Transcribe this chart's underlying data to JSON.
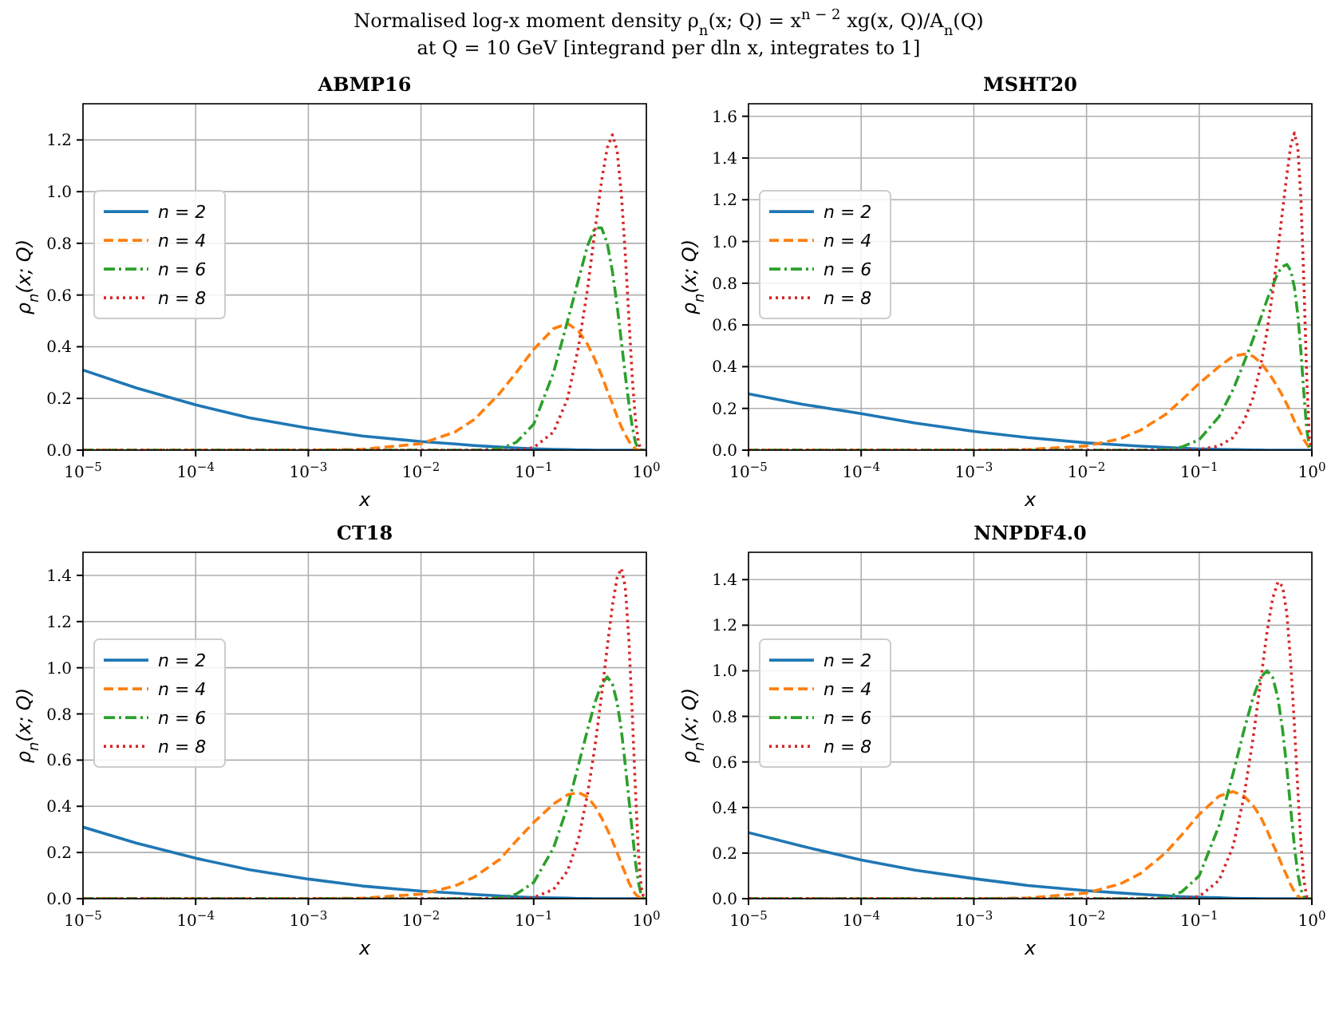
{
  "chart_data": [
    {
      "type": "line",
      "title": "ABMP16",
      "xlabel": "x",
      "ylabel": "ρ$_{n}$(x; Q)",
      "log": "x",
      "grid": true,
      "legend": "center left",
      "xlim": [
        1e-05,
        1
      ],
      "ylim": [
        0,
        1.34
      ],
      "annotations": [
        "Normalised log-x moment density  ρ$_{n}$(x; Q) = x$^{n − 2}$ xg(x, Q)/A$_{n}$(Q)",
        "at Q = 10 GeV   [integrand per dln x, integrates to 1]"
      ],
      "xticks": [
        {
          "value": 1e-05,
          "label": "10$^{−5}$"
        },
        {
          "value": 0.0001,
          "label": "10$^{−4}$"
        },
        {
          "value": 0.001,
          "label": "10$^{−3}$"
        },
        {
          "value": 0.01,
          "label": "10$^{−2}$"
        },
        {
          "value": 0.1,
          "label": "10$^{−1}$"
        },
        {
          "value": 1,
          "label": "10$^{0}$"
        }
      ],
      "yticks": [
        {
          "value": 0,
          "label": "0.0"
        },
        {
          "value": 0.2,
          "label": "0.2"
        },
        {
          "value": 0.4,
          "label": "0.4"
        },
        {
          "value": 0.6,
          "label": "0.6"
        },
        {
          "value": 0.8,
          "label": "0.8"
        },
        {
          "value": 1,
          "label": "1.0"
        },
        {
          "value": 1.2,
          "label": "1.2"
        }
      ],
      "x": [
        1e-05,
        3e-05,
        0.0001,
        0.0003,
        0.001,
        0.003,
        0.01,
        0.02,
        0.03,
        0.05,
        0.07,
        0.1,
        0.15,
        0.2,
        0.25,
        0.3,
        0.35,
        0.4,
        0.45,
        0.5,
        0.55,
        0.6,
        0.65,
        0.7,
        0.75,
        0.8,
        0.85,
        0.9,
        0.95,
        1
      ],
      "series": [
        {
          "name": "n = 2",
          "color": "#1f77b4",
          "line_style": "solid",
          "values": [
            0.31,
            0.24,
            0.175,
            0.125,
            0.085,
            0.055,
            0.033,
            0.024,
            0.018,
            0.012,
            0.008,
            0.005,
            0.003,
            0.002,
            0.001,
            0.001,
            0,
            0,
            0,
            0,
            0,
            0,
            0,
            0,
            0,
            0,
            0,
            0,
            0,
            0
          ]
        },
        {
          "name": "n = 4",
          "color": "#ff7f0e",
          "line_style": "dashed",
          "values": [
            0,
            0,
            0,
            0,
            0,
            0.003,
            0.025,
            0.07,
            0.12,
            0.22,
            0.3,
            0.39,
            0.47,
            0.49,
            0.46,
            0.41,
            0.35,
            0.29,
            0.23,
            0.18,
            0.13,
            0.09,
            0.06,
            0.035,
            0.015,
            0.005,
            0,
            0,
            0,
            0
          ]
        },
        {
          "name": "n = 6",
          "color": "#2ca02c",
          "line_style": "dashdot",
          "values": [
            0,
            0,
            0,
            0,
            0,
            0,
            0,
            0,
            0,
            0.005,
            0.03,
            0.1,
            0.3,
            0.5,
            0.66,
            0.79,
            0.86,
            0.86,
            0.8,
            0.69,
            0.56,
            0.42,
            0.29,
            0.18,
            0.09,
            0.03,
            0.005,
            0,
            0,
            0
          ]
        },
        {
          "name": "n = 8",
          "color": "#d62728",
          "line_style": "dotted",
          "values": [
            0,
            0,
            0,
            0,
            0,
            0,
            0,
            0,
            0,
            0,
            0,
            0.01,
            0.07,
            0.2,
            0.4,
            0.62,
            0.85,
            1.04,
            1.17,
            1.22,
            1.16,
            0.99,
            0.76,
            0.51,
            0.28,
            0.12,
            0.03,
            0,
            0,
            0
          ]
        }
      ]
    },
    {
      "type": "line",
      "title": "MSHT20",
      "xlabel": "x",
      "ylabel": "ρ$_{n}$(x; Q)",
      "log": "x",
      "grid": true,
      "legend": "center left",
      "xlim": [
        1e-05,
        1
      ],
      "ylim": [
        0,
        1.66
      ],
      "xticks": [
        {
          "value": 1e-05,
          "label": "10$^{−5}$"
        },
        {
          "value": 0.0001,
          "label": "10$^{−4}$"
        },
        {
          "value": 0.001,
          "label": "10$^{−3}$"
        },
        {
          "value": 0.01,
          "label": "10$^{−2}$"
        },
        {
          "value": 0.1,
          "label": "10$^{−1}$"
        },
        {
          "value": 1,
          "label": "10$^{0}$"
        }
      ],
      "yticks": [
        {
          "value": 0,
          "label": "0.0"
        },
        {
          "value": 0.2,
          "label": "0.2"
        },
        {
          "value": 0.4,
          "label": "0.4"
        },
        {
          "value": 0.6,
          "label": "0.6"
        },
        {
          "value": 0.8,
          "label": "0.8"
        },
        {
          "value": 1,
          "label": "1.0"
        },
        {
          "value": 1.2,
          "label": "1.2"
        },
        {
          "value": 1.4,
          "label": "1.4"
        },
        {
          "value": 1.6,
          "label": "1.6"
        }
      ],
      "x": [
        1e-05,
        3e-05,
        0.0001,
        0.0003,
        0.001,
        0.003,
        0.01,
        0.02,
        0.03,
        0.05,
        0.07,
        0.1,
        0.15,
        0.2,
        0.25,
        0.3,
        0.35,
        0.4,
        0.45,
        0.5,
        0.55,
        0.6,
        0.65,
        0.7,
        0.75,
        0.8,
        0.85,
        0.9,
        0.95,
        1
      ],
      "series": [
        {
          "name": "n = 2",
          "color": "#1f77b4",
          "line_style": "solid",
          "values": [
            0.27,
            0.22,
            0.175,
            0.13,
            0.09,
            0.06,
            0.035,
            0.025,
            0.019,
            0.013,
            0.009,
            0.006,
            0.004,
            0.003,
            0.002,
            0.001,
            0.001,
            0,
            0,
            0,
            0,
            0,
            0,
            0,
            0,
            0,
            0,
            0,
            0,
            0
          ]
        },
        {
          "name": "n = 4",
          "color": "#ff7f0e",
          "line_style": "dashed",
          "values": [
            0,
            0,
            0,
            0,
            0,
            0.003,
            0.02,
            0.055,
            0.095,
            0.17,
            0.24,
            0.32,
            0.4,
            0.45,
            0.46,
            0.45,
            0.42,
            0.38,
            0.34,
            0.3,
            0.26,
            0.22,
            0.18,
            0.14,
            0.11,
            0.08,
            0.05,
            0.03,
            0.012,
            0
          ]
        },
        {
          "name": "n = 6",
          "color": "#2ca02c",
          "line_style": "dashdot",
          "values": [
            0,
            0,
            0,
            0,
            0,
            0,
            0,
            0,
            0,
            0.003,
            0.015,
            0.05,
            0.16,
            0.29,
            0.42,
            0.53,
            0.63,
            0.72,
            0.79,
            0.85,
            0.88,
            0.89,
            0.86,
            0.78,
            0.65,
            0.47,
            0.27,
            0.1,
            0.02,
            0
          ]
        },
        {
          "name": "n = 8",
          "color": "#d62728",
          "line_style": "dotted",
          "values": [
            0,
            0,
            0,
            0,
            0,
            0,
            0,
            0,
            0,
            0,
            0,
            0.003,
            0.02,
            0.06,
            0.14,
            0.25,
            0.4,
            0.57,
            0.76,
            0.96,
            1.15,
            1.32,
            1.46,
            1.52,
            1.45,
            1.2,
            0.8,
            0.35,
            0.06,
            0
          ]
        }
      ]
    },
    {
      "type": "line",
      "title": "CT18",
      "xlabel": "x",
      "ylabel": "ρ$_{n}$(x; Q)",
      "log": "x",
      "grid": true,
      "legend": "center left",
      "xlim": [
        1e-05,
        1
      ],
      "ylim": [
        0,
        1.5
      ],
      "xticks": [
        {
          "value": 1e-05,
          "label": "10$^{−5}$"
        },
        {
          "value": 0.0001,
          "label": "10$^{−4}$"
        },
        {
          "value": 0.001,
          "label": "10$^{−3}$"
        },
        {
          "value": 0.01,
          "label": "10$^{−2}$"
        },
        {
          "value": 0.1,
          "label": "10$^{−1}$"
        },
        {
          "value": 1,
          "label": "10$^{0}$"
        }
      ],
      "yticks": [
        {
          "value": 0,
          "label": "0.0"
        },
        {
          "value": 0.2,
          "label": "0.2"
        },
        {
          "value": 0.4,
          "label": "0.4"
        },
        {
          "value": 0.6,
          "label": "0.6"
        },
        {
          "value": 0.8,
          "label": "0.8"
        },
        {
          "value": 1,
          "label": "1.0"
        },
        {
          "value": 1.2,
          "label": "1.2"
        },
        {
          "value": 1.4,
          "label": "1.4"
        }
      ],
      "x": [
        1e-05,
        3e-05,
        0.0001,
        0.0003,
        0.001,
        0.003,
        0.01,
        0.02,
        0.03,
        0.05,
        0.07,
        0.1,
        0.15,
        0.2,
        0.25,
        0.3,
        0.35,
        0.4,
        0.45,
        0.5,
        0.55,
        0.6,
        0.65,
        0.7,
        0.75,
        0.8,
        0.85,
        0.9,
        0.95,
        1
      ],
      "series": [
        {
          "name": "n = 2",
          "color": "#1f77b4",
          "line_style": "solid",
          "values": [
            0.31,
            0.24,
            0.175,
            0.125,
            0.085,
            0.055,
            0.033,
            0.024,
            0.018,
            0.012,
            0.008,
            0.005,
            0.003,
            0.002,
            0.001,
            0.001,
            0,
            0,
            0,
            0,
            0,
            0,
            0,
            0,
            0,
            0,
            0,
            0,
            0,
            0
          ]
        },
        {
          "name": "n = 4",
          "color": "#ff7f0e",
          "line_style": "dashed",
          "values": [
            0,
            0,
            0,
            0,
            0,
            0.002,
            0.02,
            0.055,
            0.095,
            0.17,
            0.25,
            0.33,
            0.41,
            0.45,
            0.46,
            0.44,
            0.4,
            0.35,
            0.3,
            0.25,
            0.2,
            0.15,
            0.11,
            0.07,
            0.04,
            0.02,
            0.008,
            0.002,
            0,
            0
          ]
        },
        {
          "name": "n = 6",
          "color": "#2ca02c",
          "line_style": "dashdot",
          "values": [
            0,
            0,
            0,
            0,
            0,
            0,
            0,
            0,
            0,
            0.003,
            0.02,
            0.07,
            0.22,
            0.4,
            0.58,
            0.73,
            0.85,
            0.93,
            0.96,
            0.93,
            0.85,
            0.73,
            0.58,
            0.43,
            0.29,
            0.16,
            0.07,
            0.015,
            0,
            0
          ]
        },
        {
          "name": "n = 8",
          "color": "#d62728",
          "line_style": "dotted",
          "values": [
            0,
            0,
            0,
            0,
            0,
            0,
            0,
            0,
            0,
            0,
            0,
            0.005,
            0.04,
            0.12,
            0.26,
            0.45,
            0.66,
            0.88,
            1.09,
            1.27,
            1.39,
            1.43,
            1.35,
            1.12,
            0.8,
            0.47,
            0.2,
            0.05,
            0,
            0
          ]
        }
      ]
    },
    {
      "type": "line",
      "title": "NNPDF4.0",
      "xlabel": "x",
      "ylabel": "ρ$_{n}$(x; Q)",
      "log": "x",
      "grid": true,
      "legend": "center left",
      "xlim": [
        1e-05,
        1
      ],
      "ylim": [
        0,
        1.52
      ],
      "xticks": [
        {
          "value": 1e-05,
          "label": "10$^{−5}$"
        },
        {
          "value": 0.0001,
          "label": "10$^{−4}$"
        },
        {
          "value": 0.001,
          "label": "10$^{−3}$"
        },
        {
          "value": 0.01,
          "label": "10$^{−2}$"
        },
        {
          "value": 0.1,
          "label": "10$^{−1}$"
        },
        {
          "value": 1,
          "label": "10$^{0}$"
        }
      ],
      "yticks": [
        {
          "value": 0,
          "label": "0.0"
        },
        {
          "value": 0.2,
          "label": "0.2"
        },
        {
          "value": 0.4,
          "label": "0.4"
        },
        {
          "value": 0.6,
          "label": "0.6"
        },
        {
          "value": 0.8,
          "label": "0.8"
        },
        {
          "value": 1,
          "label": "1.0"
        },
        {
          "value": 1.2,
          "label": "1.2"
        },
        {
          "value": 1.4,
          "label": "1.4"
        }
      ],
      "x": [
        1e-05,
        3e-05,
        0.0001,
        0.0003,
        0.001,
        0.003,
        0.01,
        0.02,
        0.03,
        0.05,
        0.07,
        0.1,
        0.15,
        0.2,
        0.25,
        0.3,
        0.35,
        0.4,
        0.45,
        0.5,
        0.55,
        0.6,
        0.65,
        0.7,
        0.75,
        0.8,
        0.85,
        0.9,
        0.95,
        1
      ],
      "series": [
        {
          "name": "n = 2",
          "color": "#1f77b4",
          "line_style": "solid",
          "values": [
            0.29,
            0.23,
            0.17,
            0.125,
            0.088,
            0.058,
            0.035,
            0.025,
            0.019,
            0.013,
            0.009,
            0.006,
            0.004,
            0.002,
            0.001,
            0.001,
            0,
            0,
            0,
            0,
            0,
            0,
            0,
            0,
            0,
            0,
            0,
            null,
            null,
            null
          ]
        },
        {
          "name": "n = 4",
          "color": "#ff7f0e",
          "line_style": "dashed",
          "values": [
            0,
            0,
            0,
            0,
            0,
            0.003,
            0.025,
            0.065,
            0.11,
            0.2,
            0.28,
            0.37,
            0.45,
            0.47,
            0.45,
            0.41,
            0.36,
            0.3,
            0.24,
            0.19,
            0.14,
            0.1,
            0.06,
            0.03,
            0.012,
            0.003,
            0,
            0,
            0,
            0
          ]
        },
        {
          "name": "n = 6",
          "color": "#2ca02c",
          "line_style": "dashdot",
          "values": [
            0,
            0,
            0,
            0,
            0,
            0,
            0,
            0,
            0,
            0.004,
            0.03,
            0.1,
            0.32,
            0.55,
            0.74,
            0.88,
            0.97,
            1,
            0.97,
            0.88,
            0.74,
            0.57,
            0.39,
            0.23,
            0.11,
            0.04,
            0.008,
            0,
            0,
            0
          ]
        },
        {
          "name": "n = 8",
          "color": "#d62728",
          "line_style": "dotted",
          "values": [
            0,
            0,
            0,
            0,
            0,
            0,
            0,
            0,
            0,
            0,
            0,
            0.01,
            0.08,
            0.23,
            0.45,
            0.7,
            0.95,
            1.17,
            1.32,
            1.39,
            1.37,
            1.25,
            1.03,
            0.76,
            0.48,
            0.24,
            0.08,
            0.01,
            0,
            0
          ]
        }
      ]
    }
  ]
}
